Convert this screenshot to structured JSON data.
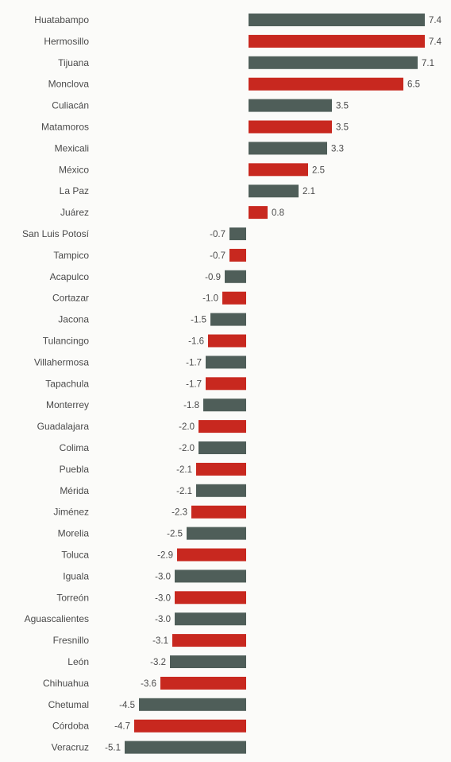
{
  "chart_data": {
    "type": "bar",
    "orientation": "horizontal",
    "categories": [
      "Huatabampo",
      "Hermosillo",
      "Tijuana",
      "Monclova",
      "Culiacán",
      "Matamoros",
      "Mexicali",
      "México",
      "La Paz",
      "Juárez",
      "San Luis Potosí",
      "Tampico",
      "Acapulco",
      "Cortazar",
      "Jacona",
      "Tulancingo",
      "Villahermosa",
      "Tapachula",
      "Monterrey",
      "Guadalajara",
      "Colima",
      "Puebla",
      "Mérida",
      "Jiménez",
      "Morelia",
      "Toluca",
      "Iguala",
      "Torreón",
      "Aguascalientes",
      "Fresnillo",
      "León",
      "Chihuahua",
      "Chetumal",
      "Córdoba",
      "Veracruz"
    ],
    "values": [
      7.4,
      7.4,
      7.1,
      6.5,
      3.5,
      3.5,
      3.3,
      2.5,
      2.1,
      0.8,
      -0.7,
      -0.7,
      -0.9,
      -1.0,
      -1.5,
      -1.6,
      -1.7,
      -1.7,
      -1.8,
      -2.0,
      -2.0,
      -2.1,
      -2.1,
      -2.3,
      -2.5,
      -2.9,
      -3.0,
      -3.0,
      -3.0,
      -3.1,
      -3.2,
      -3.6,
      -4.5,
      -4.7,
      -5.1
    ],
    "value_labels": [
      "7.4",
      "7.4",
      "7.1",
      "6.5",
      "3.5",
      "3.5",
      "3.3",
      "2.5",
      "2.1",
      "0.8",
      "-0.7",
      "-0.7",
      "-0.9",
      "-1.0",
      "-1.5",
      "-1.6",
      "-1.7",
      "-1.7",
      "-1.8",
      "-2.0",
      "-2.0",
      "-2.1",
      "-2.1",
      "-2.3",
      "-2.5",
      "-2.9",
      "-3.0",
      "-3.0",
      "-3.0",
      "-3.1",
      "-3.2",
      "-3.6",
      "-4.5",
      "-4.7",
      "-5.1"
    ],
    "bar_colors": [
      "#4f5e59",
      "#c8281f"
    ],
    "xlim": [
      -5.3,
      7.6
    ],
    "grid": false,
    "legend": "none"
  }
}
